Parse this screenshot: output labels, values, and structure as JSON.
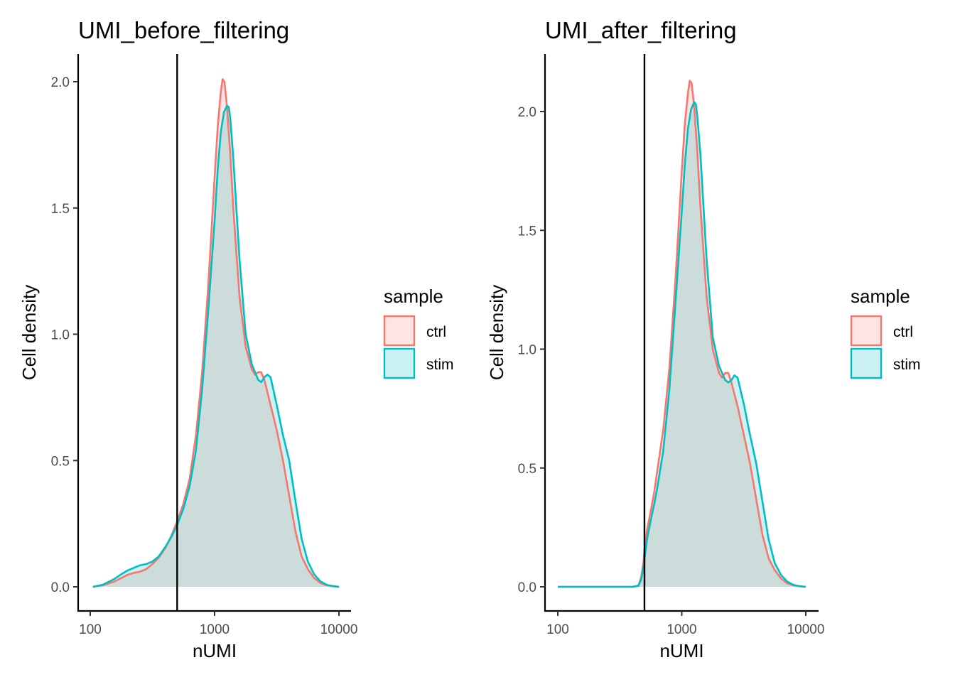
{
  "chart_data": [
    {
      "type": "area",
      "title": "UMI_before_filtering",
      "xlabel": "nUMI",
      "ylabel": "Cell density",
      "x_scale": "log10",
      "xlim": [
        100,
        10000
      ],
      "ylim": [
        0,
        2.0
      ],
      "x_ticks": [
        100,
        1000,
        10000
      ],
      "x_tick_labels": [
        "100",
        "1000",
        "10000"
      ],
      "y_ticks": [
        0,
        0.5,
        1.0,
        1.5,
        2.0
      ],
      "y_tick_labels": [
        "0.0",
        "0.5",
        "1.0",
        "1.5",
        "2.0"
      ],
      "vline": 500,
      "grid": false,
      "legend": {
        "title": "sample",
        "position": "right"
      },
      "series": [
        {
          "name": "ctrl",
          "color": "#F8766D",
          "x": [
            105,
            126,
            155,
            178,
            200,
            224,
            251,
            282,
            316,
            355,
            398,
            447,
            501,
            562,
            631,
            708,
            794,
            891,
            1000,
            1059,
            1122,
            1160,
            1200,
            1259,
            1334,
            1413,
            1585,
            1778,
            1995,
            2113,
            2239,
            2371,
            2512,
            2818,
            3162,
            3548,
            3981,
            4467,
            5012,
            5623,
            6310,
            7079,
            7943,
            8913,
            10000
          ],
          "y": [
            0.0,
            0.006,
            0.02,
            0.035,
            0.048,
            0.055,
            0.06,
            0.07,
            0.09,
            0.115,
            0.15,
            0.2,
            0.26,
            0.33,
            0.43,
            0.6,
            0.85,
            1.2,
            1.62,
            1.82,
            1.96,
            2.01,
            2.0,
            1.9,
            1.72,
            1.5,
            1.15,
            0.95,
            0.86,
            0.84,
            0.85,
            0.85,
            0.82,
            0.72,
            0.62,
            0.5,
            0.36,
            0.22,
            0.12,
            0.07,
            0.035,
            0.015,
            0.006,
            0.002,
            0.0
          ]
        },
        {
          "name": "stim",
          "color": "#00BFC4",
          "x": [
            105,
            126,
            155,
            178,
            200,
            224,
            251,
            282,
            316,
            355,
            398,
            447,
            501,
            562,
            631,
            708,
            794,
            891,
            1000,
            1059,
            1122,
            1189,
            1259,
            1300,
            1334,
            1413,
            1585,
            1778,
            1995,
            2239,
            2371,
            2512,
            2661,
            2818,
            3162,
            3548,
            3981,
            4467,
            5012,
            5623,
            6310,
            7079,
            7943,
            8913,
            10000
          ],
          "y": [
            0.0,
            0.008,
            0.03,
            0.05,
            0.065,
            0.075,
            0.085,
            0.09,
            0.1,
            0.12,
            0.155,
            0.195,
            0.245,
            0.31,
            0.4,
            0.54,
            0.78,
            1.1,
            1.45,
            1.65,
            1.8,
            1.88,
            1.905,
            1.9,
            1.86,
            1.7,
            1.3,
            1.0,
            0.88,
            0.82,
            0.81,
            0.83,
            0.84,
            0.83,
            0.72,
            0.6,
            0.5,
            0.34,
            0.19,
            0.1,
            0.05,
            0.022,
            0.008,
            0.003,
            0.0
          ]
        }
      ]
    },
    {
      "type": "area",
      "title": "UMI_after_filtering",
      "xlabel": "nUMI",
      "ylabel": "Cell density",
      "x_scale": "log10",
      "xlim": [
        100,
        10000
      ],
      "ylim": [
        0,
        2.2
      ],
      "x_ticks": [
        100,
        1000,
        10000
      ],
      "x_tick_labels": [
        "100",
        "1000",
        "10000"
      ],
      "y_ticks": [
        0,
        0.5,
        1.0,
        1.5,
        2.0
      ],
      "y_tick_labels": [
        "0.0",
        "0.5",
        "1.0",
        "1.5",
        "2.0"
      ],
      "vline": 500,
      "grid": false,
      "legend": {
        "title": "sample",
        "position": "right"
      },
      "series": [
        {
          "name": "ctrl",
          "color": "#F8766D",
          "x": [
            100,
            200,
            400,
            447,
            470,
            490,
            501,
            525,
            562,
            600,
            631,
            708,
            794,
            891,
            1000,
            1059,
            1122,
            1160,
            1200,
            1259,
            1334,
            1413,
            1585,
            1778,
            1995,
            2113,
            2239,
            2371,
            2512,
            2818,
            3162,
            3548,
            3981,
            4467,
            5012,
            5623,
            6310,
            7079,
            7943,
            8913,
            10000
          ],
          "y": [
            0.0,
            0.0,
            0.0,
            0.005,
            0.04,
            0.1,
            0.16,
            0.24,
            0.32,
            0.4,
            0.48,
            0.66,
            0.92,
            1.3,
            1.75,
            1.95,
            2.08,
            2.13,
            2.12,
            2.02,
            1.83,
            1.6,
            1.22,
            1.0,
            0.9,
            0.88,
            0.9,
            0.9,
            0.86,
            0.76,
            0.64,
            0.52,
            0.37,
            0.22,
            0.12,
            0.07,
            0.035,
            0.015,
            0.006,
            0.002,
            0.0
          ]
        },
        {
          "name": "stim",
          "color": "#00BFC4",
          "x": [
            100,
            200,
            400,
            447,
            470,
            490,
            501,
            525,
            562,
            600,
            631,
            708,
            794,
            891,
            1000,
            1059,
            1122,
            1189,
            1259,
            1300,
            1334,
            1413,
            1585,
            1778,
            1995,
            2239,
            2371,
            2512,
            2661,
            2818,
            3162,
            3548,
            3981,
            4467,
            5012,
            5623,
            6310,
            7079,
            7943,
            8913,
            10000
          ],
          "y": [
            0.0,
            0.0,
            0.0,
            0.004,
            0.03,
            0.08,
            0.12,
            0.2,
            0.28,
            0.35,
            0.41,
            0.57,
            0.83,
            1.2,
            1.58,
            1.78,
            1.93,
            2.01,
            2.04,
            2.03,
            1.98,
            1.82,
            1.38,
            1.05,
            0.93,
            0.87,
            0.86,
            0.87,
            0.89,
            0.88,
            0.77,
            0.64,
            0.52,
            0.36,
            0.2,
            0.1,
            0.05,
            0.022,
            0.008,
            0.003,
            0.0
          ]
        }
      ]
    }
  ]
}
